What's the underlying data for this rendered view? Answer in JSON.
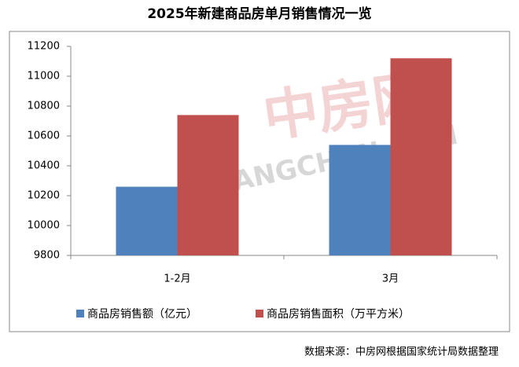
{
  "chart_data": {
    "type": "bar",
    "title": "2025年新建商品房单月销售情况一览",
    "categories": [
      "1-2月",
      "3月"
    ],
    "series": [
      {
        "name": "商品房销售额（亿元）",
        "color": "#4f81bd",
        "values": [
          10260,
          10540
        ]
      },
      {
        "name": "商品房销售面积（万平方米）",
        "color": "#c0504d",
        "values": [
          10740,
          11120
        ]
      }
    ],
    "ylim": [
      9800,
      11200
    ],
    "yticks": [
      9800,
      10000,
      10200,
      10400,
      10600,
      10800,
      11000,
      11200
    ],
    "grid": false,
    "legend": "bottom",
    "source": "数据来源：中房网根据国家统计局数据整理",
    "watermark": [
      "中房网",
      "FANGCHAN.COM"
    ]
  }
}
